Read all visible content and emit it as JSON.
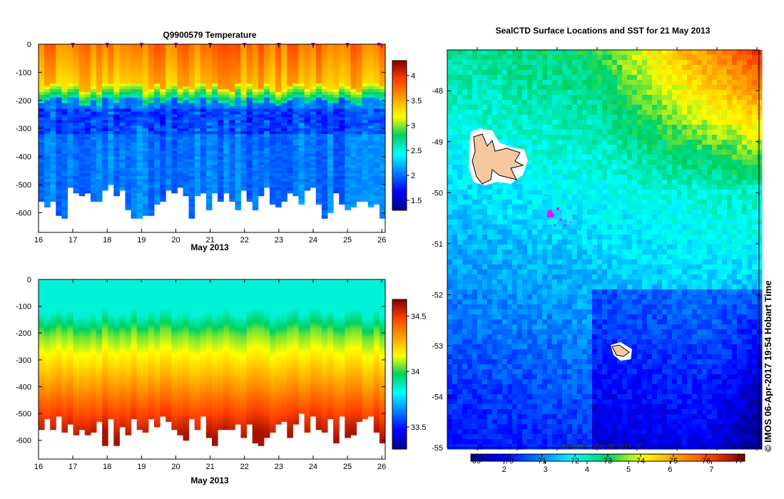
{
  "chart_data": [
    {
      "type": "heatmap",
      "title": "Q9900579  Temperature",
      "xlabel": "May 2013",
      "ylabel": "",
      "xlim": [
        16,
        26.1
      ],
      "ylim": [
        -670,
        0
      ],
      "x_ticks": [
        "16",
        "17",
        "18",
        "19",
        "20",
        "21",
        "22",
        "23",
        "24",
        "25",
        "26"
      ],
      "y_ticks": [
        "0",
        "-100",
        "-200",
        "-300",
        "-400",
        "-500",
        "-600"
      ],
      "colorbar": {
        "ticks": [
          "4",
          "3.5",
          "3",
          "2.5",
          "2",
          "1.5"
        ],
        "range": [
          1.3,
          4.3
        ]
      },
      "profile_day": 16,
      "profile_values": [
        3.8,
        3.7,
        2.6,
        1.9,
        2.0,
        2.1,
        2.1
      ],
      "profile_depths": [
        0,
        -120,
        -180,
        -250,
        -350,
        -450,
        -550
      ]
    },
    {
      "type": "heatmap",
      "title": "",
      "xlabel": "May 2013",
      "ylabel": "",
      "xlim": [
        16,
        26.1
      ],
      "ylim": [
        -670,
        0
      ],
      "x_ticks": [
        "16",
        "17",
        "18",
        "19",
        "20",
        "21",
        "22",
        "23",
        "24",
        "25",
        "26"
      ],
      "y_ticks": [
        "0",
        "-100",
        "-200",
        "-300",
        "-400",
        "-500",
        "-600"
      ],
      "colorbar": {
        "ticks": [
          "34.5",
          "34",
          "33.5"
        ],
        "range": [
          33.3,
          34.65
        ]
      },
      "profile_day": 16,
      "profile_values": [
        33.85,
        33.85,
        33.95,
        34.1,
        34.3,
        34.45,
        34.6
      ],
      "profile_depths": [
        0,
        -100,
        -200,
        -300,
        -400,
        -500,
        -600
      ]
    },
    {
      "type": "heatmap",
      "title": "SealCTD Surface Locations and SST for 21 May 2013",
      "xlabel": "",
      "ylabel": "",
      "ylim": [
        -55,
        -47.2
      ],
      "y_ticks": [
        "-48",
        "-49",
        "-50",
        "-51",
        "-52",
        "-53",
        "-54",
        "-55"
      ],
      "colorbar": {
        "ticks": [
          "2",
          "3",
          "4",
          "5",
          "6",
          "7"
        ],
        "overlay_ticks": [
          "69",
          "70",
          "71",
          "72",
          "73",
          "74",
          "75",
          "76",
          "77"
        ],
        "label": "REMSS MW-IR SST °C",
        "range": [
          1.2,
          7.8
        ]
      }
    }
  ],
  "credit": "© IMOS 06-Apr-2017 19:54 Hobart Time"
}
